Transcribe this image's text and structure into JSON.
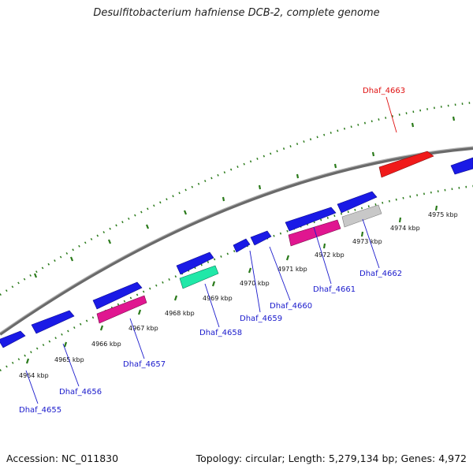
{
  "title": "Desulfitobacterium hafniense DCB-2, complete genome",
  "footer": {
    "accession": "Accession: NC_011830",
    "topology": "Topology: circular; Length: 5,279,134 bp; Genes: 4,972"
  },
  "colors": {
    "backbone": "#888888",
    "ticks": "#2a7a1a",
    "forward_gene": "#1a1ae6",
    "label_blue": "#1a1acc",
    "label_red": "#e01010"
  },
  "scale_labels": [
    "4964 kbp",
    "4965 kbp",
    "4966 kbp",
    "4967 kbp",
    "4968 kbp",
    "4969 kbp",
    "4970 kbp",
    "4971 kbp",
    "4972 kbp",
    "4973 kbp",
    "4974 kbp",
    "4975 kbp"
  ],
  "gene_labels": [
    "Dhaf_4655",
    "Dhaf_4656",
    "Dhaf_4657",
    "Dhaf_4658",
    "Dhaf_4659",
    "Dhaf_4660",
    "Dhaf_4661",
    "Dhaf_4662",
    "Dhaf_4663"
  ]
}
